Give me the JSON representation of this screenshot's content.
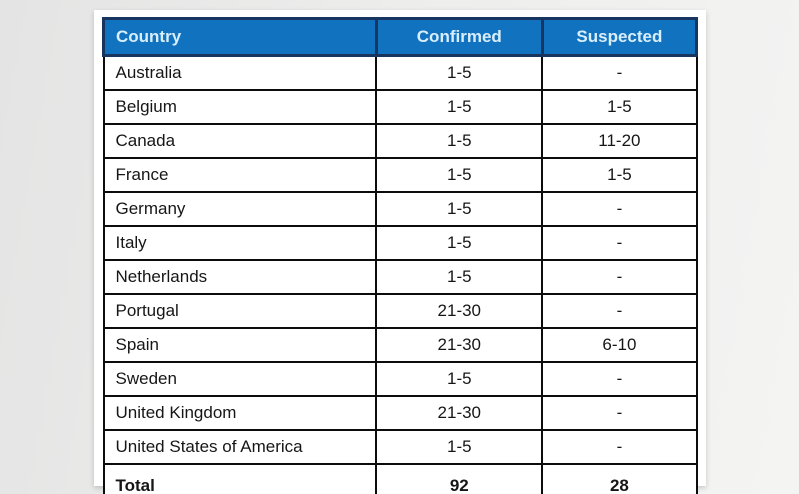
{
  "chart_data": {
    "type": "table",
    "columns": [
      "Country",
      "Confirmed",
      "Suspected"
    ],
    "rows": [
      {
        "country": "Australia",
        "confirmed": "1-5",
        "suspected": "-"
      },
      {
        "country": "Belgium",
        "confirmed": "1-5",
        "suspected": "1-5"
      },
      {
        "country": "Canada",
        "confirmed": "1-5",
        "suspected": "11-20"
      },
      {
        "country": "France",
        "confirmed": "1-5",
        "suspected": "1-5"
      },
      {
        "country": "Germany",
        "confirmed": "1-5",
        "suspected": "-"
      },
      {
        "country": "Italy",
        "confirmed": "1-5",
        "suspected": "-"
      },
      {
        "country": "Netherlands",
        "confirmed": "1-5",
        "suspected": "-"
      },
      {
        "country": "Portugal",
        "confirmed": "21-30",
        "suspected": "-"
      },
      {
        "country": "Spain",
        "confirmed": "21-30",
        "suspected": "6-10"
      },
      {
        "country": "Sweden",
        "confirmed": "1-5",
        "suspected": "-"
      },
      {
        "country": "United Kingdom",
        "confirmed": "21-30",
        "suspected": "-"
      },
      {
        "country": "United States of America",
        "confirmed": "1-5",
        "suspected": "-"
      }
    ],
    "total": {
      "label": "Total",
      "confirmed": "92",
      "suspected": "28"
    }
  },
  "colors": {
    "header_bg": "#1173c0",
    "header_text": "#d9eefb",
    "header_border": "#17355e",
    "grid_border": "#0c0c0c",
    "card_bg": "#ffffff",
    "page_bg_left": "#e4e4e4",
    "page_bg_right": "#f4f4f3"
  }
}
